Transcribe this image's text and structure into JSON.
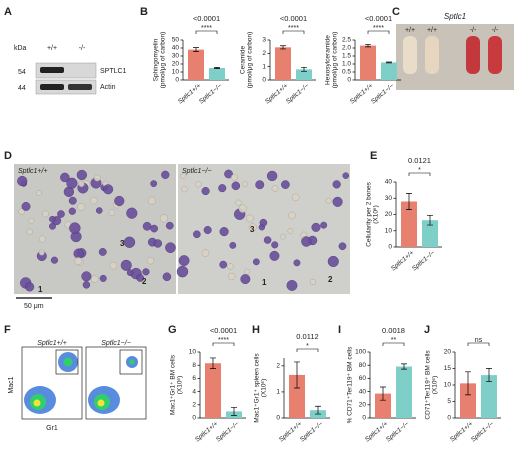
{
  "panel_labels": [
    "A",
    "B",
    "C",
    "D",
    "E",
    "F",
    "G",
    "H",
    "I",
    "J"
  ],
  "blot": {
    "kda": "kDa",
    "lanes": [
      "+/+",
      "-/-"
    ],
    "sizes": [
      "54",
      "44"
    ],
    "bands": [
      "SPTLC1",
      "Actin"
    ]
  },
  "tubes": {
    "title": "Sptlc1",
    "lanes": [
      "+/+",
      "+/+",
      "-/-",
      "-/-"
    ]
  },
  "micrographs": {
    "labels": [
      "Sptlc1+/+",
      "Sptlc1−/−"
    ],
    "scale": "50 μm",
    "markers": [
      "3",
      "2",
      "1",
      "3",
      "1",
      "2"
    ]
  },
  "flow": {
    "labels": [
      "Sptlc1+/+",
      "Sptlc1−/−"
    ],
    "x_axis": "Gr1",
    "y_axis": "Mac1"
  },
  "chart_data": [
    {
      "type": "bar",
      "ylabel": [
        "Sphingomyelin",
        "(pmol/μg of carbon)"
      ],
      "categories": [
        "Sptlc1+/+",
        "Sptlc1−/−"
      ],
      "values": [
        38,
        15
      ],
      "errors": [
        2.5,
        0.8
      ],
      "colors": [
        "#e8806f",
        "#7fcfc9"
      ],
      "ylim": [
        0,
        50
      ],
      "yticks": [
        0,
        10,
        20,
        30,
        40,
        50
      ],
      "p_value": "<0.0001",
      "significance": "****"
    },
    {
      "type": "bar",
      "ylabel": [
        "Ceramide",
        "(pmol/μg of carbon)"
      ],
      "categories": [
        "Sptlc1+/+",
        "Sptlc1−/−"
      ],
      "values": [
        2.45,
        0.8
      ],
      "errors": [
        0.12,
        0.15
      ],
      "colors": [
        "#e8806f",
        "#7fcfc9"
      ],
      "ylim": [
        0,
        3
      ],
      "yticks": [
        0,
        1,
        2,
        3
      ],
      "p_value": "<0.0001",
      "significance": "****"
    },
    {
      "type": "bar",
      "ylabel": [
        "Hexosylceramide",
        "(pmol/μg of carbon)"
      ],
      "categories": [
        "Sptlc1+/+",
        "Sptlc1−/−"
      ],
      "values": [
        2.15,
        1.1
      ],
      "errors": [
        0.08,
        0.03
      ],
      "colors": [
        "#e8806f",
        "#7fcfc9"
      ],
      "ylim": [
        0,
        2.5
      ],
      "yticks": [
        0,
        0.5,
        {
          "value": 1,
          "label": "1.0"
        },
        1.5,
        {
          "value": 2,
          "label": "2.0"
        },
        2.5
      ],
      "p_value": "<0.0001",
      "significance": "****"
    },
    {
      "type": "bar",
      "ylabel": [
        "Cellularity per 2 bones",
        "(X10⁶)"
      ],
      "categories": [
        "Sptlc1+/+",
        "Sptlc1−/−"
      ],
      "values": [
        28,
        16.5
      ],
      "errors": [
        5,
        3
      ],
      "colors": [
        "#e8806f",
        "#7fcfc9"
      ],
      "ylim": [
        0,
        40
      ],
      "yticks": [
        0,
        10,
        20,
        30,
        40
      ],
      "p_value": "0.0121",
      "significance": "*"
    },
    {
      "type": "bar",
      "ylabel": [
        "Mac1⁺Gr1⁺ BM cells",
        "(X10⁶)"
      ],
      "categories": [
        "Sptlc1+/+",
        "Sptlc1−/−"
      ],
      "values": [
        8.3,
        1.0
      ],
      "errors": [
        0.8,
        0.6
      ],
      "colors": [
        "#e8806f",
        "#7fcfc9"
      ],
      "ylim": [
        0,
        10
      ],
      "yticks": [
        0,
        2,
        4,
        6,
        8,
        10
      ],
      "p_value": "<0.0001",
      "significance": "****"
    },
    {
      "type": "bar",
      "ylabel": [
        "Mac1⁺Gr1⁺ spleen cells",
        "(X10⁶)"
      ],
      "categories": [
        "Sptlc1+/+",
        "Sptlc1−/−"
      ],
      "values": [
        1.65,
        0.3
      ],
      "errors": [
        0.5,
        0.15
      ],
      "colors": [
        "#e8806f",
        "#7fcfc9"
      ],
      "ylim": [
        0,
        2.3
      ],
      "yticks": [
        0,
        1,
        2
      ],
      "p_value": "0.0112",
      "significance": "*"
    },
    {
      "type": "bar",
      "ylabel": [
        "% CD71⁺Ter119⁺ BM cells"
      ],
      "categories": [
        "Sptlc1+/+",
        "Sptlc1−/−"
      ],
      "values": [
        37,
        78
      ],
      "errors": [
        10,
        4
      ],
      "colors": [
        "#e8806f",
        "#7fcfc9"
      ],
      "ylim": [
        0,
        100
      ],
      "yticks": [
        0,
        20,
        40,
        60,
        80,
        100
      ],
      "p_value": "0.0018",
      "significance": "**"
    },
    {
      "type": "bar",
      "ylabel": [
        "CD71⁺Ter119⁺ BM cells",
        "(X10⁶)"
      ],
      "categories": [
        "Sptlc1+/+",
        "Sptlc1−/−"
      ],
      "values": [
        10.5,
        13
      ],
      "errors": [
        3.5,
        2
      ],
      "colors": [
        "#e8806f",
        "#7fcfc9"
      ],
      "ylim": [
        0,
        20
      ],
      "yticks": [
        0,
        5,
        10,
        15,
        20
      ],
      "significance": "ns"
    }
  ]
}
